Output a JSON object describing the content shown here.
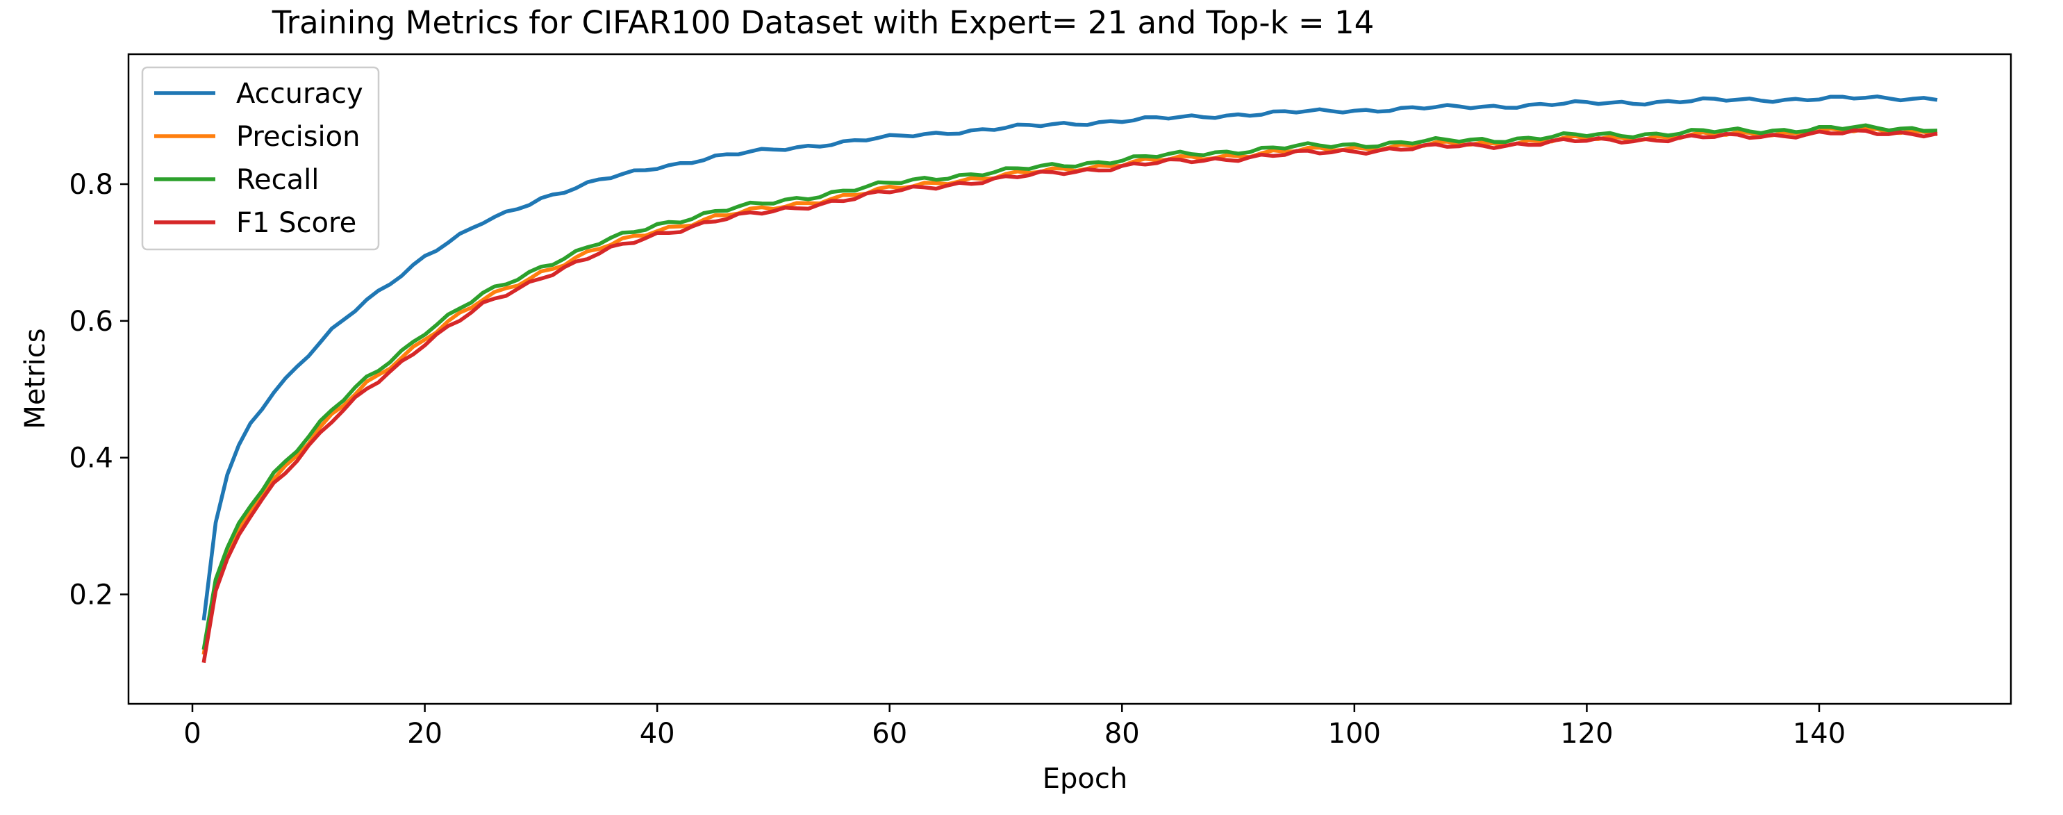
{
  "chart_data": {
    "type": "line",
    "title": "Training Metrics for CIFAR100 Dataset with Expert= 21  and Top-k = 14",
    "xlabel": "Epoch",
    "ylabel": "Metrics",
    "xlim": [
      -5.5,
      156.5
    ],
    "ylim": [
      0.04,
      0.99
    ],
    "xticks": [
      0,
      20,
      40,
      60,
      80,
      100,
      120,
      140
    ],
    "yticks": [
      0.2,
      0.4,
      0.6,
      0.8
    ],
    "xtick_labels": [
      "0",
      "20",
      "40",
      "60",
      "80",
      "100",
      "120",
      "140"
    ],
    "ytick_labels": [
      "0.2",
      "0.4",
      "0.6",
      "0.8"
    ],
    "grid": false,
    "legend": "upper left",
    "x": {
      "start": 1,
      "end": 150
    },
    "series": [
      {
        "name": "Accuracy",
        "color": "#1f77b4",
        "anchors": [
          [
            1,
            0.165
          ],
          [
            2,
            0.305
          ],
          [
            3,
            0.375
          ],
          [
            4,
            0.418
          ],
          [
            5,
            0.45
          ],
          [
            7,
            0.498
          ],
          [
            10,
            0.55
          ],
          [
            12,
            0.585
          ],
          [
            15,
            0.63
          ],
          [
            20,
            0.695
          ],
          [
            25,
            0.743
          ],
          [
            30,
            0.78
          ],
          [
            35,
            0.805
          ],
          [
            40,
            0.825
          ],
          [
            45,
            0.84
          ],
          [
            50,
            0.85
          ],
          [
            55,
            0.86
          ],
          [
            60,
            0.868
          ],
          [
            65,
            0.876
          ],
          [
            70,
            0.882
          ],
          [
            75,
            0.888
          ],
          [
            80,
            0.893
          ],
          [
            85,
            0.897
          ],
          [
            90,
            0.902
          ],
          [
            95,
            0.905
          ],
          [
            100,
            0.908
          ],
          [
            110,
            0.913
          ],
          [
            120,
            0.918
          ],
          [
            130,
            0.922
          ],
          [
            140,
            0.925
          ],
          [
            150,
            0.926
          ]
        ],
        "wiggle": 0.003
      },
      {
        "name": "Precision",
        "color": "#ff7f0e",
        "anchors": [
          [
            1,
            0.115
          ],
          [
            2,
            0.215
          ],
          [
            3,
            0.26
          ],
          [
            4,
            0.295
          ],
          [
            5,
            0.325
          ],
          [
            7,
            0.37
          ],
          [
            10,
            0.422
          ],
          [
            12,
            0.46
          ],
          [
            15,
            0.508
          ],
          [
            20,
            0.575
          ],
          [
            25,
            0.63
          ],
          [
            30,
            0.672
          ],
          [
            35,
            0.705
          ],
          [
            40,
            0.733
          ],
          [
            45,
            0.752
          ],
          [
            50,
            0.765
          ],
          [
            55,
            0.78
          ],
          [
            60,
            0.792
          ],
          [
            65,
            0.805
          ],
          [
            70,
            0.812
          ],
          [
            75,
            0.822
          ],
          [
            80,
            0.83
          ],
          [
            85,
            0.837
          ],
          [
            90,
            0.843
          ],
          [
            95,
            0.848
          ],
          [
            100,
            0.853
          ],
          [
            110,
            0.859
          ],
          [
            120,
            0.866
          ],
          [
            130,
            0.871
          ],
          [
            140,
            0.877
          ],
          [
            150,
            0.878
          ]
        ],
        "wiggle": 0.004
      },
      {
        "name": "Recall",
        "color": "#2ca02c",
        "anchors": [
          [
            1,
            0.122
          ],
          [
            2,
            0.222
          ],
          [
            3,
            0.268
          ],
          [
            4,
            0.303
          ],
          [
            5,
            0.333
          ],
          [
            7,
            0.378
          ],
          [
            10,
            0.43
          ],
          [
            12,
            0.468
          ],
          [
            15,
            0.516
          ],
          [
            20,
            0.584
          ],
          [
            25,
            0.638
          ],
          [
            30,
            0.68
          ],
          [
            35,
            0.713
          ],
          [
            40,
            0.741
          ],
          [
            45,
            0.76
          ],
          [
            50,
            0.773
          ],
          [
            55,
            0.788
          ],
          [
            60,
            0.8
          ],
          [
            65,
            0.812
          ],
          [
            70,
            0.819
          ],
          [
            75,
            0.828
          ],
          [
            80,
            0.836
          ],
          [
            85,
            0.843
          ],
          [
            90,
            0.849
          ],
          [
            95,
            0.854
          ],
          [
            100,
            0.858
          ],
          [
            110,
            0.864
          ],
          [
            120,
            0.871
          ],
          [
            130,
            0.876
          ],
          [
            140,
            0.881
          ],
          [
            150,
            0.882
          ]
        ],
        "wiggle": 0.004
      },
      {
        "name": "F1 Score",
        "color": "#d62728",
        "anchors": [
          [
            1,
            0.103
          ],
          [
            2,
            0.205
          ],
          [
            3,
            0.252
          ],
          [
            4,
            0.288
          ],
          [
            5,
            0.318
          ],
          [
            7,
            0.363
          ],
          [
            10,
            0.415
          ],
          [
            12,
            0.452
          ],
          [
            15,
            0.5
          ],
          [
            20,
            0.568
          ],
          [
            25,
            0.622
          ],
          [
            30,
            0.665
          ],
          [
            35,
            0.698
          ],
          [
            40,
            0.727
          ],
          [
            45,
            0.747
          ],
          [
            50,
            0.76
          ],
          [
            55,
            0.775
          ],
          [
            60,
            0.788
          ],
          [
            65,
            0.8
          ],
          [
            70,
            0.808
          ],
          [
            75,
            0.818
          ],
          [
            80,
            0.826
          ],
          [
            85,
            0.833
          ],
          [
            90,
            0.839
          ],
          [
            95,
            0.844
          ],
          [
            100,
            0.849
          ],
          [
            110,
            0.856
          ],
          [
            120,
            0.863
          ],
          [
            130,
            0.868
          ],
          [
            140,
            0.874
          ],
          [
            150,
            0.875
          ]
        ],
        "wiggle": 0.004
      }
    ]
  }
}
